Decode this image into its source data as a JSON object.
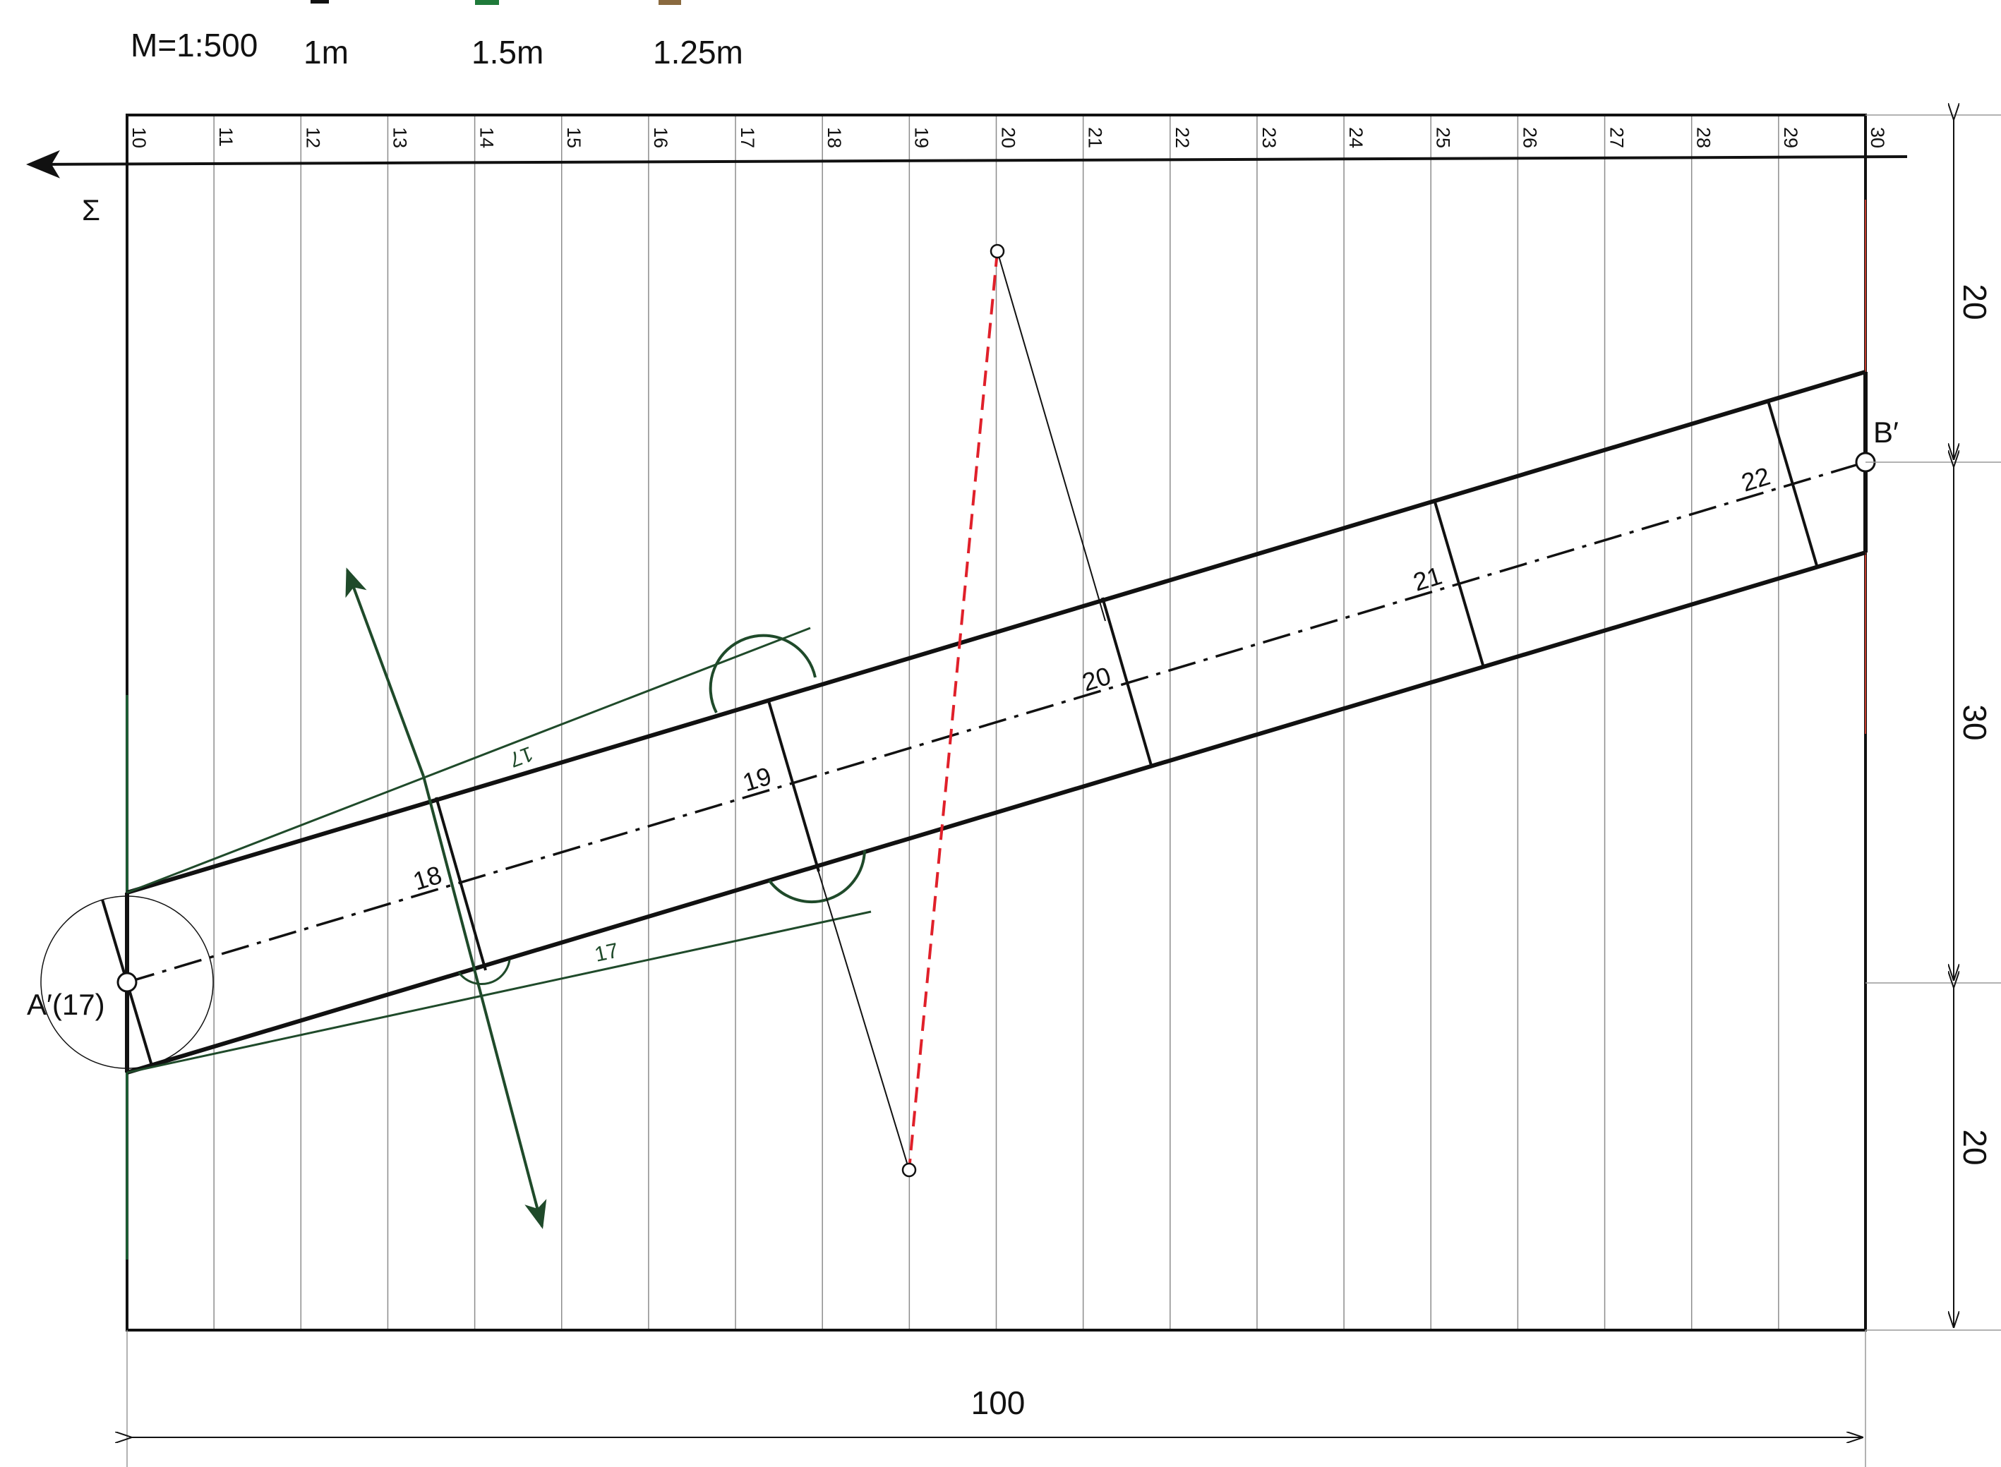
{
  "header": {
    "scale_label": "M=1:500",
    "legend": [
      {
        "label": "1m",
        "color": "#111111"
      },
      {
        "label": "1.5m",
        "color": "#1f7a3a"
      },
      {
        "label": "1.25m",
        "color": "#8a6a3f"
      }
    ]
  },
  "grid": {
    "ticks": [
      "10",
      "11",
      "12",
      "13",
      "14",
      "15",
      "16",
      "17",
      "18",
      "19",
      "20",
      "21",
      "22",
      "23",
      "24",
      "25",
      "26",
      "27",
      "28",
      "29",
      "30"
    ]
  },
  "labels": {
    "sigma": "Σ",
    "point_a": "A′(17)",
    "point_b": "B′",
    "stations": [
      "18",
      "19",
      "20",
      "21",
      "22"
    ],
    "contour_upper": "17",
    "contour_lower": "17"
  },
  "dimensions": {
    "bottom": "100",
    "right": [
      "20",
      "30",
      "20"
    ]
  },
  "colors": {
    "line": "#111111",
    "grid": "#8c8c8c",
    "green": "#1f4a2a",
    "red": "#e0202a"
  }
}
